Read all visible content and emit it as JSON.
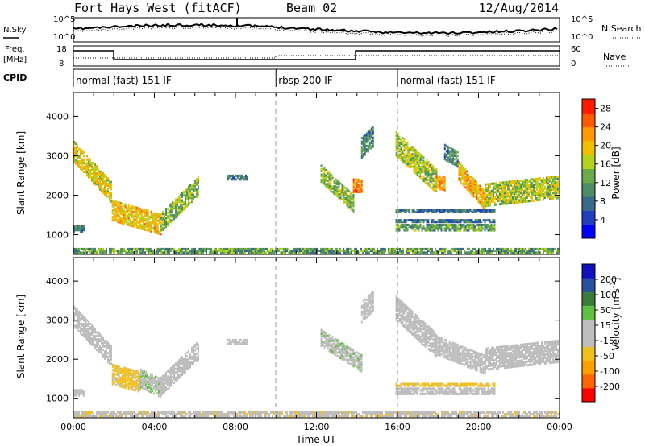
{
  "header": {
    "title": "Fort Hays West (fitACF)",
    "beam": "Beam 02",
    "date": "12/Aug/2014"
  },
  "strip_panels": {
    "nsky_label": "N.Sky",
    "nsearch_label": "N.Search",
    "noise_ticks": [
      "10^5",
      "10^0"
    ],
    "freq_label": "Freq.",
    "freq_unit": "[MHz]",
    "freq_ticks": [
      "18",
      "8"
    ],
    "nave_label": "Nave",
    "nave_ticks": [
      "60",
      "0"
    ],
    "cpid_label": "CPID",
    "cpid_segments": [
      {
        "label": "normal (fast) 151 IF",
        "start_hour": 0,
        "end_hour": 10
      },
      {
        "label": "rbsp 200 IF",
        "start_hour": 10,
        "end_hour": 16
      },
      {
        "label": "normal (fast) 151 IF",
        "start_hour": 16,
        "end_hour": 24
      }
    ]
  },
  "colors": {
    "power_scale": [
      "#0000ff",
      "#1f3fbf",
      "#3a6a8a",
      "#4c8c68",
      "#6aaa4a",
      "#b5d21e",
      "#f0c000",
      "#ff9a00",
      "#ff5a00",
      "#ff1a00"
    ],
    "velocity_scale": [
      "#ff0000",
      "#ff6400",
      "#ffa000",
      "#f0c020",
      "#bebebe",
      "#bebebe",
      "#60c040",
      "#3a7a3a",
      "#2850a0",
      "#1010c0"
    ]
  },
  "chart_data": [
    {
      "type": "heatmap",
      "name": "power",
      "xlabel": "",
      "ylabel": "Slant Range [km]",
      "xlim": [
        0,
        24
      ],
      "ylim": [
        500,
        4600
      ],
      "yticks": [
        "1000",
        "2000",
        "3000",
        "4000"
      ],
      "colorbar_label": "Power [dB]",
      "colorbar_ticks": [
        "4",
        "8",
        "12",
        "16",
        "20",
        "24",
        "28"
      ],
      "colorbar_range": [
        0,
        30
      ],
      "regions": [
        {
          "x": [
            0.0,
            1.9
          ],
          "y_center": [
            3100,
            2050
          ],
          "half_width": 260,
          "value": 18
        },
        {
          "x": [
            1.9,
            4.3
          ],
          "y_center": [
            1600,
            1250
          ],
          "half_width": 250,
          "value": 20
        },
        {
          "x": [
            4.3,
            6.2
          ],
          "y_center": [
            1300,
            2250
          ],
          "half_width": 230,
          "value": 14
        },
        {
          "x": [
            0.0,
            0.5
          ],
          "y_center": [
            1150,
            1150
          ],
          "half_width": 90,
          "value": 10
        },
        {
          "x": [
            7.6,
            8.6
          ],
          "y_center": [
            2450,
            2450
          ],
          "half_width": 60,
          "value": 8
        },
        {
          "x": [
            12.2,
            13.8
          ],
          "y_center": [
            2550,
            1800
          ],
          "half_width": 220,
          "value": 14
        },
        {
          "x": [
            13.8,
            14.2
          ],
          "y_center": [
            2250,
            2250
          ],
          "half_width": 180,
          "value": 24
        },
        {
          "x": [
            14.2,
            14.8
          ],
          "y_center": [
            3200,
            3500
          ],
          "half_width": 260,
          "value": 10
        },
        {
          "x": [
            15.9,
            17.9
          ],
          "y_center": [
            3300,
            2350
          ],
          "half_width": 300,
          "value": 16
        },
        {
          "x": [
            17.9,
            18.3
          ],
          "y_center": [
            2350,
            2300
          ],
          "half_width": 180,
          "value": 22
        },
        {
          "x": [
            18.3,
            19.0
          ],
          "y_center": [
            3100,
            2900
          ],
          "half_width": 200,
          "value": 10
        },
        {
          "x": [
            19.0,
            20.3
          ],
          "y_center": [
            2600,
            1850
          ],
          "half_width": 230,
          "value": 20
        },
        {
          "x": [
            20.3,
            23.9
          ],
          "y_center": [
            2000,
            2200
          ],
          "half_width": 280,
          "value": 16
        },
        {
          "x": [
            15.9,
            20.8
          ],
          "y_center": [
            1180,
            1180
          ],
          "half_width": 80,
          "value": 12
        },
        {
          "x": [
            15.9,
            20.8
          ],
          "y_center": [
            1350,
            1350
          ],
          "half_width": 40,
          "value": 8
        },
        {
          "x": [
            15.9,
            20.8
          ],
          "y_center": [
            1600,
            1600
          ],
          "half_width": 40,
          "value": 8
        },
        {
          "x": [
            0.0,
            24.0
          ],
          "y_center": [
            560,
            560
          ],
          "half_width": 70,
          "value": 12
        }
      ]
    },
    {
      "type": "heatmap",
      "name": "velocity",
      "xlabel": "Time UT",
      "ylabel": "Slant Range [km]",
      "xlim": [
        0,
        24
      ],
      "ylim": [
        500,
        4600
      ],
      "xticks": [
        "00:00",
        "04:00",
        "08:00",
        "12:00",
        "16:00",
        "20:00",
        "00:00"
      ],
      "yticks": [
        "1000",
        "2000",
        "3000",
        "4000"
      ],
      "colorbar_label": "Velocity [m s^-1]",
      "colorbar_ticks": [
        "-200",
        "-100",
        "-50",
        "-15",
        "15",
        "50",
        "100",
        "200"
      ],
      "colorbar_range": [
        -250,
        250
      ],
      "regions": [
        {
          "x": [
            0.0,
            1.9
          ],
          "y_center": [
            3100,
            2050
          ],
          "half_width": 260,
          "value": 0
        },
        {
          "x": [
            1.9,
            3.3
          ],
          "y_center": [
            1600,
            1400
          ],
          "half_width": 250,
          "value": -60
        },
        {
          "x": [
            3.3,
            4.3
          ],
          "y_center": [
            1500,
            1250
          ],
          "half_width": 230,
          "value": 40
        },
        {
          "x": [
            4.3,
            6.2
          ],
          "y_center": [
            1300,
            2250
          ],
          "half_width": 230,
          "value": 0
        },
        {
          "x": [
            0.0,
            0.5
          ],
          "y_center": [
            1150,
            1150
          ],
          "half_width": 90,
          "value": -30
        },
        {
          "x": [
            7.6,
            8.6
          ],
          "y_center": [
            2450,
            2450
          ],
          "half_width": 60,
          "value": 0
        },
        {
          "x": [
            12.2,
            14.2
          ],
          "y_center": [
            2550,
            1900
          ],
          "half_width": 220,
          "value": 40
        },
        {
          "x": [
            14.2,
            14.8
          ],
          "y_center": [
            3200,
            3500
          ],
          "half_width": 260,
          "value": 0
        },
        {
          "x": [
            15.9,
            17.9
          ],
          "y_center": [
            3300,
            2350
          ],
          "half_width": 300,
          "value": 0
        },
        {
          "x": [
            17.9,
            20.3
          ],
          "y_center": [
            2350,
            1850
          ],
          "half_width": 230,
          "value": 0
        },
        {
          "x": [
            20.3,
            23.9
          ],
          "y_center": [
            2000,
            2200
          ],
          "half_width": 280,
          "value": 0
        },
        {
          "x": [
            15.9,
            20.8
          ],
          "y_center": [
            1180,
            1180
          ],
          "half_width": 80,
          "value": 0
        },
        {
          "x": [
            15.9,
            20.8
          ],
          "y_center": [
            1350,
            1350
          ],
          "half_width": 40,
          "value": -60
        },
        {
          "x": [
            0.0,
            24.0
          ],
          "y_center": [
            560,
            560
          ],
          "half_width": 70,
          "value": -40
        }
      ]
    }
  ]
}
